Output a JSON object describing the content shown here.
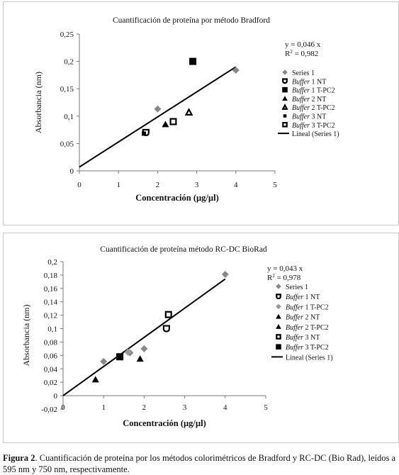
{
  "chart_data": [
    {
      "type": "scatter",
      "title": "Cuantificación de proteína por método Bradford",
      "xlabel": "Concentración (µg/µl)",
      "ylabel": "Absorbancia (nm)",
      "xlim": [
        0,
        5
      ],
      "ylim": [
        0,
        0.25
      ],
      "x_ticks": [
        "0",
        "1",
        "2",
        "3",
        "4",
        "5"
      ],
      "y_ticks": [
        "0",
        "0,05",
        "0,1",
        "0,15",
        "0,2",
        "0,25"
      ],
      "grid": false,
      "legend_position": "right",
      "equation": "y = 0,046 x",
      "r2_label": "R",
      "r2_sup": "2",
      "r2_value": " = 0,982",
      "series": [
        {
          "name": "Series 1",
          "italic": "",
          "suffix": "",
          "marker": "diamond",
          "color": "#888888",
          "points": [
            [
              2,
              0.113
            ],
            [
              4,
              0.184
            ]
          ]
        },
        {
          "name": "Buffer 1 NT",
          "italic": "Buffer",
          "suffix": " 1 NT",
          "marker": "shieldhollow",
          "color": "#000000",
          "points": [
            [
              1.7,
              0.07
            ]
          ]
        },
        {
          "name": "Buffer 1 T-PC2",
          "italic": "Buffer",
          "suffix": " 1 T-PC2",
          "marker": "square",
          "color": "#000000",
          "points": [
            [
              2.9,
              0.2
            ]
          ]
        },
        {
          "name": "Buffer 2 NT",
          "italic": "Buffer",
          "suffix": " 2 NT",
          "marker": "triangle",
          "color": "#000000",
          "points": [
            [
              2.2,
              0.085
            ]
          ]
        },
        {
          "name": "Buffer 2 T-PC2",
          "italic": "Buffer",
          "suffix": " 2 T-PC2",
          "marker": "trianglehollow",
          "color": "#000000",
          "points": [
            [
              2.8,
              0.107
            ]
          ]
        },
        {
          "name": "Buffer 3 NT",
          "italic": "Buffer",
          "suffix": " 3 NT",
          "marker": "smallsquare",
          "color": "#000000",
          "points": [
            [
              1.65,
              0.068
            ]
          ]
        },
        {
          "name": "Buffer 3 T-PC2",
          "italic": "Buffer",
          "suffix": " 3 T-PC2",
          "marker": "squarehollow",
          "color": "#000000",
          "points": [
            [
              2.4,
              0.09
            ]
          ]
        }
      ],
      "trendline": {
        "name": "Lineal (Series 1)",
        "x": [
          0,
          4
        ],
        "y": [
          0.007,
          0.19
        ]
      }
    },
    {
      "type": "scatter",
      "title": "Cuantificación de proteína método RC-DC BioRad",
      "xlabel": "Concentración (µg/µl)",
      "ylabel": "Absorbancia (nm)",
      "xlim": [
        0,
        5
      ],
      "ylim": [
        -0.02,
        0.2
      ],
      "x_ticks": [
        "0",
        "1",
        "2",
        "3",
        "4",
        "5"
      ],
      "y_ticks": [
        "-0,02",
        "0",
        "0,02",
        "0,04",
        "0,06",
        "0,08",
        "0,1",
        "0,12",
        "0,14",
        "0,16",
        "0,18",
        "0,2"
      ],
      "grid": false,
      "legend_position": "right",
      "equation": "y = 0,043 x",
      "r2_label": "R",
      "r2_sup": "2",
      "r2_value": " = 0,978",
      "series": [
        {
          "name": "Series 1",
          "italic": "",
          "suffix": "",
          "marker": "diamond",
          "color": "#888888",
          "points": [
            [
              1,
              0.051
            ],
            [
              1.65,
              0.064
            ],
            [
              2,
              0.07
            ],
            [
              4,
              0.181
            ]
          ]
        },
        {
          "name": "Buffer 1 NT",
          "italic": "Buffer",
          "suffix": " 1 NT",
          "marker": "shieldhollow",
          "color": "#000000",
          "points": [
            [
              2.55,
              0.1
            ]
          ]
        },
        {
          "name": "Buffer 1 T-PC2",
          "italic": "Buffer",
          "suffix": " 1 T-PC2",
          "marker": "diamond",
          "color": "#999999",
          "points": [
            [
              1.6,
              0.065
            ]
          ]
        },
        {
          "name": "Buffer 2 NT",
          "italic": "Buffer",
          "suffix": " 2 NT",
          "marker": "triangle",
          "color": "#000000",
          "points": [
            [
              0.8,
              0.024
            ]
          ]
        },
        {
          "name": "Buffer 2 T-PC2",
          "italic": "Buffer",
          "suffix": " 2 T-PC2",
          "marker": "triangle",
          "color": "#000000",
          "points": [
            [
              1.9,
              0.055
            ]
          ]
        },
        {
          "name": "Buffer 3 NT",
          "italic": "Buffer",
          "suffix": " 3 NT",
          "marker": "squarehollow",
          "color": "#000000",
          "points": [
            [
              2.6,
              0.121
            ]
          ]
        },
        {
          "name": "Buffer 3 T-PC2",
          "italic": "Buffer",
          "suffix": " 3 T-PC2",
          "marker": "square",
          "color": "#000000",
          "points": [
            [
              1.4,
              0.058
            ]
          ]
        }
      ],
      "trendline": {
        "name": "Lineal (Series 1)",
        "x": [
          0,
          4
        ],
        "y": [
          0,
          0.174
        ]
      }
    }
  ],
  "caption": {
    "label": "Figura 2",
    "text": ". Cuantificación de proteína por los métodos colorimétricos de Bradford y RC-DC (Bio Rad), leídos a",
    "line2": "595 nm y 750 nm, respectivamente."
  }
}
